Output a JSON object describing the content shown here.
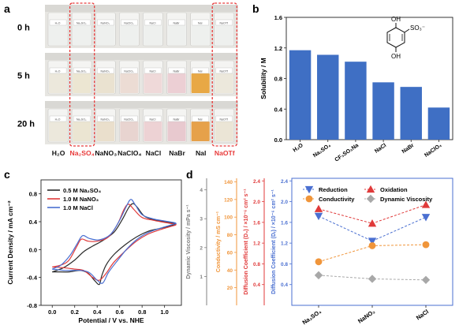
{
  "panel_a": {
    "letter": "a",
    "time_labels": [
      "0 h",
      "5 h",
      "20 h"
    ],
    "solutions": [
      {
        "label": "H₂O",
        "highlight": false,
        "vial_label": "H₂O"
      },
      {
        "label": "Na₂SO₄",
        "highlight": true,
        "vial_label": "Na₂SO₄"
      },
      {
        "label": "NaNO₃",
        "highlight": false,
        "vial_label": "NaNO₃"
      },
      {
        "label": "NaClO₄",
        "highlight": false,
        "vial_label": "NaClO₄"
      },
      {
        "label": "NaCl",
        "highlight": false,
        "vial_label": "NaCl"
      },
      {
        "label": "NaBr",
        "highlight": false,
        "vial_label": "NaBr"
      },
      {
        "label": "NaI",
        "highlight": false,
        "vial_label": "NaI"
      },
      {
        "label": "NaOTf",
        "highlight": true,
        "vial_label": "NaOTf"
      }
    ],
    "liquid_colors": {
      "0 h": [
        "#eef0ee",
        "#eef0ee",
        "#eef0ee",
        "#eef0ee",
        "#eef0ee",
        "#eef0ee",
        "#eef0ee",
        "#eef0ee"
      ],
      "5 h": [
        "#ece8dc",
        "#ece6d2",
        "#eae2d0",
        "#ecdcd4",
        "#efd9d9",
        "#eccfd4",
        "#e8a845",
        "#ece8dc"
      ],
      "20 h": [
        "#ece8dc",
        "#ebe5d2",
        "#eadfcc",
        "#e8d4d0",
        "#edd2d4",
        "#e8c9cf",
        "#e6a14a",
        "#ebe5d6"
      ]
    },
    "highlight_color": "#e83a3a"
  },
  "chart_data": [
    {
      "panel": "b",
      "type": "bar",
      "categories": [
        "H₂O",
        "Na₂SO₄",
        "CF₃SO₃Na",
        "NaCl",
        "NaBr",
        "NaClO₄"
      ],
      "values": [
        1.17,
        1.11,
        1.02,
        0.75,
        0.69,
        0.42
      ],
      "ylabel": "Solubility / M",
      "ylim": [
        0,
        1.6
      ],
      "yticks": [
        "0.0",
        "0.4",
        "0.8",
        "1.2",
        "1.6"
      ],
      "bar_color": "#3f6fc4",
      "structure_labels": {
        "oh_top": "OH",
        "so3": "SO₃⁻",
        "oh_bottom": "OH"
      }
    },
    {
      "panel": "c",
      "type": "line",
      "xlabel": "Potential / V vs. NHE",
      "ylabel": "Current Density / mA cm⁻²",
      "xlim": [
        -0.1,
        1.15
      ],
      "ylim": [
        -0.8,
        1.0
      ],
      "xticks": [
        "0.0",
        "0.2",
        "0.4",
        "0.6",
        "0.8",
        "1.0"
      ],
      "yticks": [
        "-0.8",
        "-0.4",
        "0.0",
        "0.4",
        "0.8"
      ],
      "series": [
        {
          "name": "0.5 M Na₂SO₄",
          "color": "#2b2b2b",
          "points": [
            [
              0.0,
              -0.32
            ],
            [
              0.1,
              -0.26
            ],
            [
              0.2,
              -0.15
            ],
            [
              0.28,
              -0.03
            ],
            [
              0.36,
              0.05
            ],
            [
              0.45,
              0.13
            ],
            [
              0.55,
              0.25
            ],
            [
              0.62,
              0.42
            ],
            [
              0.68,
              0.6
            ],
            [
              0.72,
              0.66
            ],
            [
              0.76,
              0.6
            ],
            [
              0.82,
              0.48
            ],
            [
              0.9,
              0.43
            ],
            [
              1.0,
              0.4
            ],
            [
              1.1,
              0.37
            ],
            [
              1.05,
              0.34
            ],
            [
              0.95,
              0.3
            ],
            [
              0.85,
              0.26
            ],
            [
              0.75,
              0.18
            ],
            [
              0.65,
              0.07
            ],
            [
              0.55,
              -0.07
            ],
            [
              0.48,
              -0.22
            ],
            [
              0.44,
              -0.38
            ],
            [
              0.42,
              -0.5
            ],
            [
              0.38,
              -0.45
            ],
            [
              0.32,
              -0.34
            ],
            [
              0.25,
              -0.3
            ],
            [
              0.15,
              -0.32
            ],
            [
              0.05,
              -0.32
            ],
            [
              0.0,
              -0.32
            ]
          ]
        },
        {
          "name": "1.0 M NaNO₃",
          "color": "#e03a3a",
          "points": [
            [
              0.0,
              -0.25
            ],
            [
              0.08,
              -0.22
            ],
            [
              0.15,
              -0.15
            ],
            [
              0.22,
              0.05
            ],
            [
              0.26,
              0.15
            ],
            [
              0.32,
              0.12
            ],
            [
              0.4,
              0.12
            ],
            [
              0.5,
              0.18
            ],
            [
              0.58,
              0.36
            ],
            [
              0.64,
              0.58
            ],
            [
              0.68,
              0.65
            ],
            [
              0.73,
              0.57
            ],
            [
              0.8,
              0.46
            ],
            [
              0.9,
              0.42
            ],
            [
              1.0,
              0.39
            ],
            [
              1.1,
              0.36
            ],
            [
              1.05,
              0.33
            ],
            [
              0.95,
              0.28
            ],
            [
              0.85,
              0.22
            ],
            [
              0.75,
              0.12
            ],
            [
              0.65,
              -0.02
            ],
            [
              0.55,
              -0.18
            ],
            [
              0.48,
              -0.34
            ],
            [
              0.42,
              -0.44
            ],
            [
              0.36,
              -0.4
            ],
            [
              0.28,
              -0.3
            ],
            [
              0.2,
              -0.28
            ],
            [
              0.1,
              -0.26
            ],
            [
              0.0,
              -0.25
            ]
          ]
        },
        {
          "name": "1.0 M NaCl",
          "color": "#4a6fd1",
          "points": [
            [
              0.0,
              -0.28
            ],
            [
              0.08,
              -0.22
            ],
            [
              0.16,
              -0.08
            ],
            [
              0.22,
              0.08
            ],
            [
              0.27,
              0.2
            ],
            [
              0.33,
              0.16
            ],
            [
              0.42,
              0.14
            ],
            [
              0.52,
              0.22
            ],
            [
              0.6,
              0.42
            ],
            [
              0.66,
              0.62
            ],
            [
              0.7,
              0.72
            ],
            [
              0.74,
              0.64
            ],
            [
              0.8,
              0.5
            ],
            [
              0.9,
              0.44
            ],
            [
              1.0,
              0.41
            ],
            [
              1.1,
              0.38
            ],
            [
              1.05,
              0.35
            ],
            [
              0.95,
              0.3
            ],
            [
              0.85,
              0.24
            ],
            [
              0.75,
              0.14
            ],
            [
              0.66,
              0.0
            ],
            [
              0.58,
              -0.16
            ],
            [
              0.5,
              -0.33
            ],
            [
              0.45,
              -0.48
            ],
            [
              0.4,
              -0.44
            ],
            [
              0.33,
              -0.33
            ],
            [
              0.25,
              -0.3
            ],
            [
              0.12,
              -0.3
            ],
            [
              0.0,
              -0.28
            ]
          ]
        }
      ]
    },
    {
      "panel": "d",
      "type": "scatter",
      "categories": [
        "Na₂SO₄",
        "NaNO₃",
        "NaCl"
      ],
      "axes": [
        {
          "label": "Dynamic Viscosity / mPa s⁻¹",
          "color": "#808080",
          "range": [
            0,
            4.4
          ],
          "ticks": [
            "1",
            "2",
            "3",
            "4"
          ]
        },
        {
          "label": "Conductivity / mS cm⁻¹",
          "color": "#f0953a",
          "range": [
            0,
            144
          ],
          "ticks": [
            "20",
            "40",
            "60",
            "80",
            "100",
            "120",
            "140"
          ]
        },
        {
          "label": "Diffusion Coefficient (D₀) / ×10⁻⁶ cm² s⁻¹",
          "color": "#e03a3a",
          "range": [
            0,
            2.45
          ],
          "ticks": [
            "0.4",
            "0.8",
            "1.2",
            "1.6",
            "2.0",
            "2.4"
          ]
        },
        {
          "label": "Diffusion Coefficient (Dᵣ) / ×10⁻⁶ cm² s⁻¹",
          "color": "#4a6fd1",
          "range": [
            0,
            2.45
          ],
          "ticks": [
            "0.4",
            "0.8",
            "1.2",
            "1.6",
            "2.0",
            "2.4"
          ]
        }
      ],
      "series": [
        {
          "name": "Reduction",
          "color": "#4a6fd1",
          "marker": "triangle-down",
          "values": [
            1.72,
            1.24,
            1.7
          ]
        },
        {
          "name": "Oxidation",
          "color": "#e03a3a",
          "marker": "triangle-up",
          "values": [
            1.86,
            1.58,
            1.94
          ]
        },
        {
          "name": "Conductivity",
          "color": "#f0953a",
          "marker": "circle",
          "values": [
            0.84,
            1.15,
            1.17
          ]
        },
        {
          "name": "Dynamic Viscosity",
          "color": "#a8a8a8",
          "marker": "diamond",
          "values": [
            0.58,
            0.51,
            0.49
          ]
        }
      ]
    }
  ],
  "panel_letters": {
    "b": "b",
    "c": "c",
    "d": "d"
  }
}
